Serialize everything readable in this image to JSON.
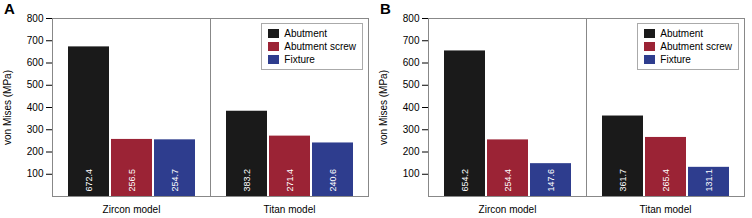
{
  "chart_data": [
    {
      "type": "bar",
      "title": "A",
      "categories": [
        "Zircon model",
        "Titan model"
      ],
      "series": [
        {
          "name": "Abutment",
          "color": "#1a1a1a",
          "values": [
            672.4,
            383.2
          ]
        },
        {
          "name": "Abutment screw",
          "color": "#9b2335",
          "values": [
            256.5,
            271.4
          ]
        },
        {
          "name": "Fixture",
          "color": "#2e3d8e",
          "values": [
            254.7,
            240.6
          ]
        }
      ],
      "ylabel": "von Mises (MPa)",
      "ylim": [
        0,
        800
      ],
      "yticks": [
        100,
        200,
        300,
        400,
        500,
        600,
        700,
        800
      ],
      "legend": "upper right",
      "data_labels": true,
      "grid": false
    },
    {
      "type": "bar",
      "title": "B",
      "categories": [
        "Zircon model",
        "Titan model"
      ],
      "series": [
        {
          "name": "Abutment",
          "color": "#1a1a1a",
          "values": [
            654.2,
            361.7
          ]
        },
        {
          "name": "Abutment screw",
          "color": "#9b2335",
          "values": [
            254.4,
            265.4
          ]
        },
        {
          "name": "Fixture",
          "color": "#2e3d8e",
          "values": [
            147.6,
            131.1
          ]
        }
      ],
      "ylabel": "von Mises (MPa)",
      "ylim": [
        0,
        800
      ],
      "yticks": [
        100,
        200,
        300,
        400,
        500,
        600,
        700,
        800
      ],
      "legend": "upper right",
      "data_labels": true,
      "grid": false
    }
  ]
}
